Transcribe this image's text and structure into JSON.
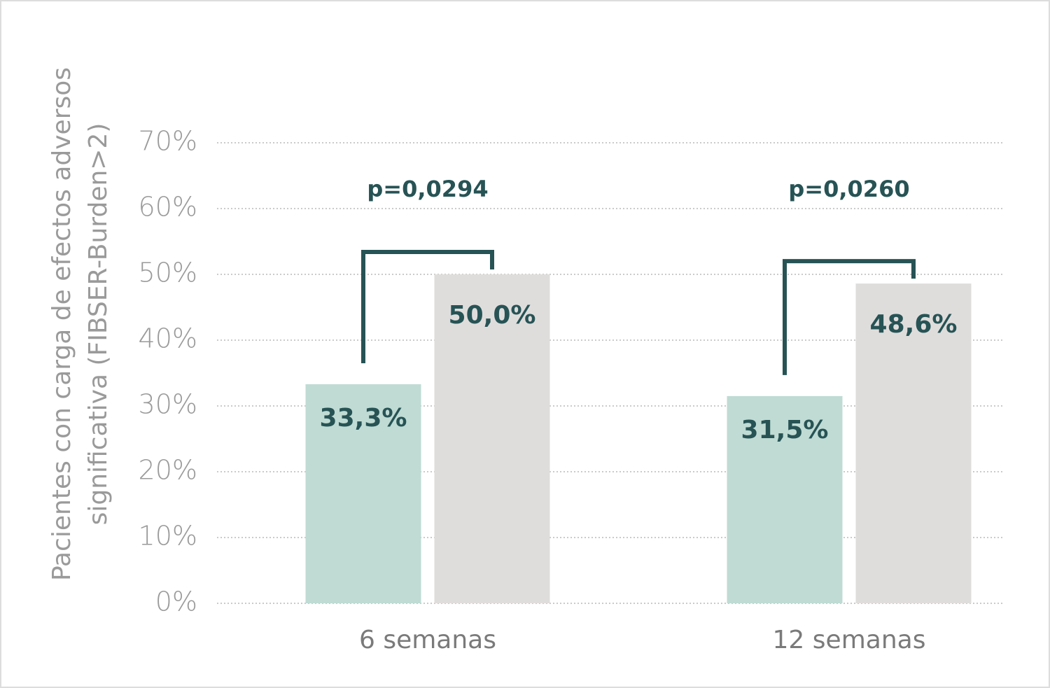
{
  "chart_data": {
    "type": "bar",
    "y_label": [
      "Pacientes con carga de efectos adversos",
      "significativa (FIBSER-Burden>2)"
    ],
    "categories": [
      "6 semanas",
      "12 semanas"
    ],
    "series": [
      {
        "color": "#bfdbd4",
        "values": [
          33.3,
          31.5
        ],
        "value_labels": [
          "33,3%",
          "31,5%"
        ]
      },
      {
        "color": "#dfdddc",
        "values": [
          50.0,
          48.6
        ],
        "value_labels": [
          "50,0%",
          "48,6%"
        ]
      }
    ],
    "annotations": [
      "p=0,0294",
      "p=0,0260"
    ],
    "ylim": [
      0,
      70
    ],
    "yticks": [
      {
        "value": 0,
        "label": "0%"
      },
      {
        "value": 10,
        "label": "10%"
      },
      {
        "value": 20,
        "label": "20%"
      },
      {
        "value": 30,
        "label": "30%"
      },
      {
        "value": 40,
        "label": "40%"
      },
      {
        "value": 50,
        "label": "50%"
      },
      {
        "value": 60,
        "label": "60%"
      },
      {
        "value": 70,
        "label": "70%"
      }
    ],
    "grid": true
  }
}
